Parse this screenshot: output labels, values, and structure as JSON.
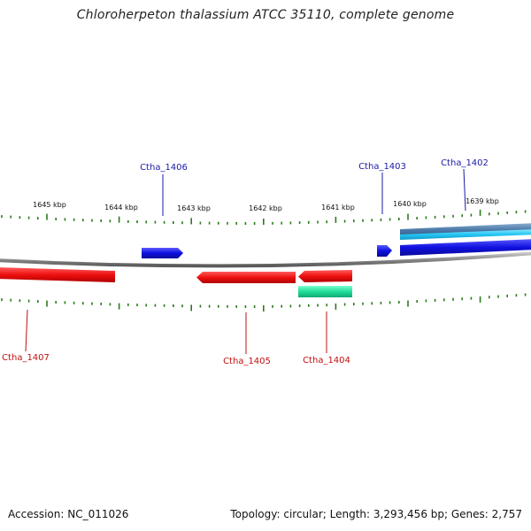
{
  "title": "Chloroherpeton thalassium ATCC 35110, complete genome",
  "footer": {
    "accession": "Accession: NC_011026",
    "summary": "Topology: circular; Length: 3,293,456 bp; Genes: 2,757"
  },
  "ruler": {
    "labels": [
      "1645 kbp",
      "1644 kbp",
      "1643 kbp",
      "1642 kbp",
      "1641 kbp",
      "1640 kbp",
      "1639 kbp"
    ]
  },
  "genes": {
    "forward": [
      "Ctha_1406",
      "Ctha_1403",
      "Ctha_1402"
    ],
    "reverse": [
      "Ctha_1407",
      "Ctha_1405",
      "Ctha_1404"
    ]
  },
  "colors": {
    "forward_label": "#1a1aa8",
    "reverse_label": "#c01010",
    "forward_gene": "#1616e8",
    "reverse_gene": "#ee1111",
    "rna_gene": "#22dd99",
    "tick": "#2a7a1a",
    "backbone": "#8a8a8a"
  }
}
